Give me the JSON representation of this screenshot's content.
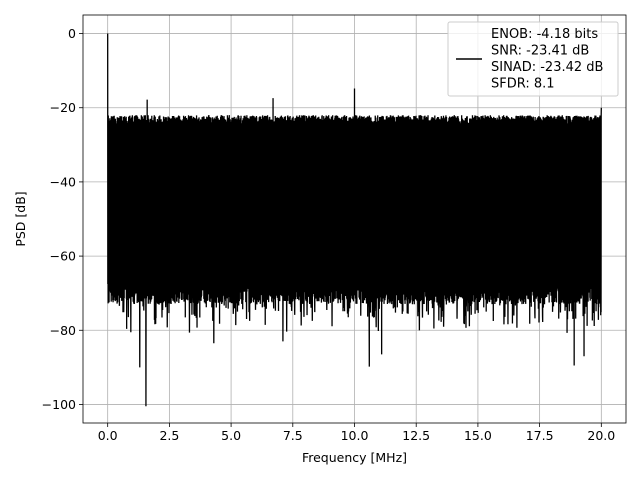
{
  "chart_data": {
    "type": "line",
    "title": "",
    "xlabel": "Frequency [MHz]",
    "ylabel": "PSD [dB]",
    "xlim": [
      -1.0,
      21.0
    ],
    "ylim": [
      -105.0,
      5.0
    ],
    "x_ticks": [
      0.0,
      2.5,
      5.0,
      7.5,
      10.0,
      12.5,
      15.0,
      17.5,
      20.0
    ],
    "x_tick_labels": [
      "0.0",
      "2.5",
      "5.0",
      "7.5",
      "10.0",
      "12.5",
      "15.0",
      "17.5",
      "20.0"
    ],
    "y_ticks": [
      0,
      -20,
      -40,
      -60,
      -80,
      -100
    ],
    "y_tick_labels": [
      "0",
      "−20",
      "−40",
      "−60",
      "−80",
      "−100"
    ],
    "grid": true,
    "legend_position": "top-right",
    "series_color": "#000000",
    "series": [
      {
        "legend_lines": [
          "ENOB: -4.18 bits",
          "SNR: -23.41 dB",
          "SINAD: -23.42 dB",
          "SFDR: 8.1"
        ],
        "noise_floor": {
          "upper_db": -24.5,
          "lower_db": -70.0
        },
        "peaks": [
          {
            "x": 0.0,
            "y": 0.0
          },
          {
            "x": 1.6,
            "y": -17.8
          },
          {
            "x": 6.7,
            "y": -17.4
          },
          {
            "x": 10.0,
            "y": -14.8
          },
          {
            "x": 20.0,
            "y": -20.0
          }
        ],
        "dips": [
          {
            "x": 1.3,
            "y": -90.0
          },
          {
            "x": 1.55,
            "y": -100.5
          },
          {
            "x": 4.3,
            "y": -83.5
          },
          {
            "x": 7.1,
            "y": -83.0
          },
          {
            "x": 10.6,
            "y": -89.8
          },
          {
            "x": 11.1,
            "y": -86.5
          },
          {
            "x": 18.9,
            "y": -89.5
          },
          {
            "x": 19.3,
            "y": -87.0
          }
        ]
      }
    ]
  }
}
